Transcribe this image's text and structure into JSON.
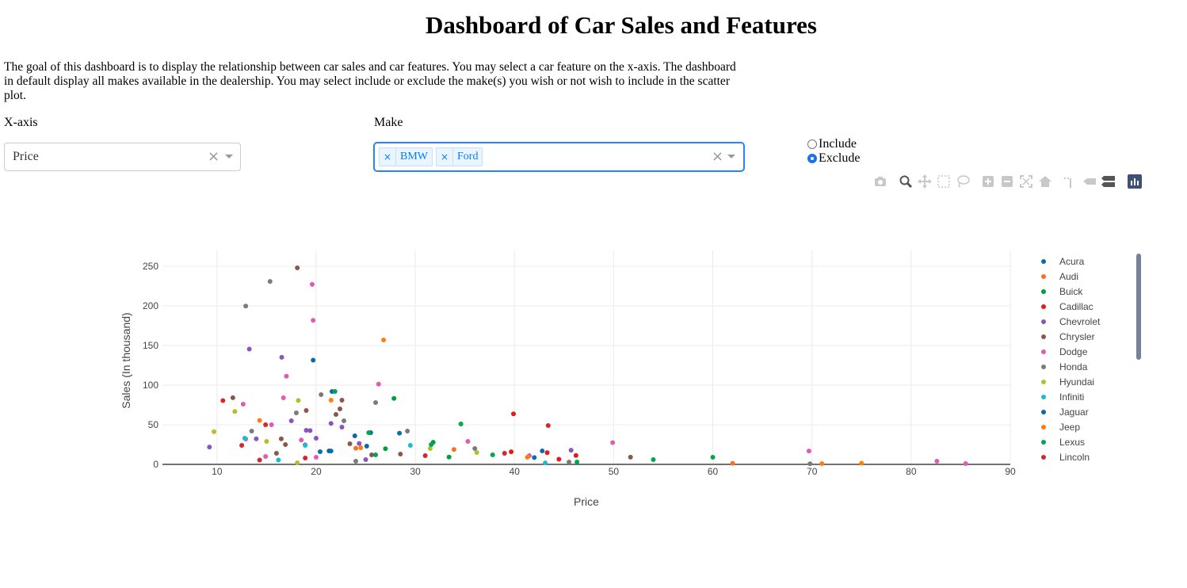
{
  "page": {
    "title": "Dashboard of Car Sales and Features",
    "description": "The goal of this dashboard is to display the relationship between car sales and car features. You may select a car feature on the x-axis. The dashboard in default display all makes available in the dealership. You may select include or exclude the make(s) you wish or not wish to include in the scatter plot."
  },
  "controls": {
    "xaxis_label": "X-axis",
    "xaxis_value": "Price",
    "make_label": "Make",
    "make_chips": [
      "BMW",
      "Ford"
    ],
    "clear_glyph": "×",
    "chip_remove_glyph": "×",
    "radio_options": [
      {
        "label": "Include",
        "checked": false
      },
      {
        "label": "Exclude",
        "checked": true
      }
    ]
  },
  "modebar": {
    "icons": [
      "camera-icon",
      "zoom-icon",
      "pan-icon",
      "box-select-icon",
      "lasso-select-icon",
      "zoom-in-icon",
      "zoom-out-icon",
      "autoscale-icon",
      "reset-axes-icon",
      "spike-lines-icon",
      "hover-closest-icon",
      "hover-compare-icon",
      "plotly-logo-icon"
    ]
  },
  "chart_data": {
    "type": "scatter",
    "xlabel": "Price",
    "ylabel": "Sales (In thousand)",
    "xlim": [
      4.5,
      90
    ],
    "ylim": [
      0,
      270
    ],
    "x_ticks": [
      10,
      20,
      30,
      40,
      50,
      60,
      70,
      80,
      90
    ],
    "y_ticks": [
      0,
      50,
      100,
      150,
      200,
      250
    ],
    "grid": true,
    "legend_position": "right",
    "series": [
      {
        "name": "Acura",
        "color": "#0072b2",
        "points": [
          [
            21.5,
            16.9
          ],
          [
            28.4,
            39.4
          ],
          [
            42.0,
            8.6
          ],
          [
            20.4,
            16.0
          ]
        ]
      },
      {
        "name": "Audi",
        "color": "#f97127",
        "points": [
          [
            24.0,
            20.4
          ],
          [
            33.9,
            18.8
          ],
          [
            62.0,
            1.4
          ]
        ]
      },
      {
        "name": "Buick",
        "color": "#009e3d",
        "points": [
          [
            26.99,
            19.7
          ],
          [
            33.4,
            9.2
          ],
          [
            31.8,
            27.9
          ],
          [
            27.85,
            83.3
          ]
        ]
      },
      {
        "name": "Cadillac",
        "color": "#e31a1c",
        "points": [
          [
            39.9,
            63.7
          ],
          [
            39.67,
            15.9
          ],
          [
            44.48,
            6.5
          ],
          [
            46.2,
            11.2
          ],
          [
            43.3,
            14.8
          ]
        ]
      },
      {
        "name": "Chevrolet",
        "color": "#8c54b8",
        "points": [
          [
            13.26,
            145.5
          ],
          [
            16.53,
            135.1
          ],
          [
            18.89,
            24.6
          ],
          [
            19.39,
            42.6
          ],
          [
            24.34,
            26.4
          ],
          [
            45.71,
            17.9
          ],
          [
            13.96,
            32.3
          ],
          [
            9.24,
            21.9
          ],
          [
            21.5,
            51.6
          ],
          [
            20.0,
            33.0
          ],
          [
            17.5,
            55.0
          ],
          [
            19.0,
            43.0
          ],
          [
            22.6,
            47.0
          ],
          [
            25.0,
            6.0
          ]
        ]
      },
      {
        "name": "Chrysler",
        "color": "#8c564b",
        "points": [
          [
            11.6,
            84.1
          ],
          [
            16.48,
            32.3
          ],
          [
            18.1,
            248.0
          ],
          [
            22.4,
            70.0
          ],
          [
            16.0,
            14.0
          ],
          [
            22.0,
            63.0
          ],
          [
            16.9,
            25.0
          ],
          [
            23.4,
            26.0
          ],
          [
            28.5,
            13.0
          ],
          [
            19.0,
            68.0
          ],
          [
            25.6,
            12.0
          ],
          [
            51.7,
            9.1
          ],
          [
            22.6,
            81.0
          ]
        ]
      },
      {
        "name": "Dodge",
        "color": "#e05bb5",
        "points": [
          [
            12.64,
            76.0
          ],
          [
            17.0,
            111.3
          ],
          [
            19.6,
            227.1
          ],
          [
            19.7,
            181.7
          ],
          [
            26.3,
            101.3
          ],
          [
            12.9,
            32.0
          ],
          [
            16.7,
            84.0
          ],
          [
            18.5,
            30.7
          ],
          [
            15.5,
            50.0
          ],
          [
            14.9,
            10.0
          ],
          [
            20.0,
            9.0
          ],
          [
            35.3,
            29.0
          ],
          [
            41.5,
            11.0
          ],
          [
            49.9,
            27.5
          ],
          [
            69.7,
            16.9
          ],
          [
            82.6,
            4.0
          ],
          [
            85.5,
            1.0
          ]
        ]
      },
      {
        "name": "Honda",
        "color": "#7a7a7a",
        "points": [
          [
            12.9,
            199.7
          ],
          [
            15.35,
            230.9
          ],
          [
            20.5,
            88.0
          ],
          [
            26.0,
            78.0
          ],
          [
            13.5,
            42.0
          ],
          [
            18.0,
            65.0
          ],
          [
            22.8,
            55.0
          ],
          [
            29.2,
            42.0
          ],
          [
            24.0,
            4.0
          ],
          [
            36.0,
            20.0
          ],
          [
            45.5,
            3.0
          ],
          [
            69.8,
            0.8
          ]
        ]
      },
      {
        "name": "Hyundai",
        "color": "#b5bd2f",
        "points": [
          [
            9.7,
            41.2
          ],
          [
            11.8,
            66.7
          ],
          [
            18.2,
            80.6
          ],
          [
            15.0,
            29.0
          ],
          [
            31.5,
            20.0
          ],
          [
            36.2,
            15.0
          ],
          [
            18.1,
            2.0
          ]
        ]
      },
      {
        "name": "Infiniti",
        "color": "#17becf",
        "points": [
          [
            12.8,
            33.0
          ],
          [
            18.9,
            24.0
          ],
          [
            29.5,
            24.0
          ],
          [
            16.2,
            5.5
          ],
          [
            43.1,
            1.9
          ]
        ]
      },
      {
        "name": "Jaguar",
        "color": "#0f68a8",
        "points": [
          [
            19.7,
            131.5
          ],
          [
            23.9,
            36.0
          ],
          [
            25.5,
            40.0
          ],
          [
            21.3,
            17.0
          ],
          [
            21.6,
            92.0
          ],
          [
            25.1,
            23.0
          ],
          [
            42.8,
            17.0
          ]
        ]
      },
      {
        "name": "Jeep",
        "color": "#ff7f0e",
        "points": [
          [
            26.8,
            157.0
          ],
          [
            14.3,
            55.5
          ],
          [
            21.5,
            81.0
          ],
          [
            24.5,
            21.0
          ],
          [
            71.0,
            1.0
          ],
          [
            75.0,
            1.5
          ],
          [
            41.3,
            9.0
          ]
        ]
      },
      {
        "name": "Lexus",
        "color": "#00a650",
        "points": [
          [
            21.9,
            92.0
          ],
          [
            25.3,
            40.0
          ],
          [
            34.6,
            51.0
          ],
          [
            31.6,
            25.0
          ],
          [
            37.8,
            12.0
          ],
          [
            46.3,
            3.0
          ],
          [
            54.0,
            6.0
          ],
          [
            60.0,
            9.0
          ],
          [
            26.0,
            12.0
          ]
        ]
      },
      {
        "name": "Lincoln",
        "color": "#d62728",
        "points": [
          [
            10.6,
            80.5
          ],
          [
            14.9,
            50.0
          ],
          [
            12.5,
            24.0
          ],
          [
            18.9,
            8.0
          ],
          [
            14.3,
            5.5
          ],
          [
            43.4,
            49.0
          ],
          [
            31.0,
            11.0
          ],
          [
            39.0,
            14.0
          ]
        ]
      }
    ]
  }
}
